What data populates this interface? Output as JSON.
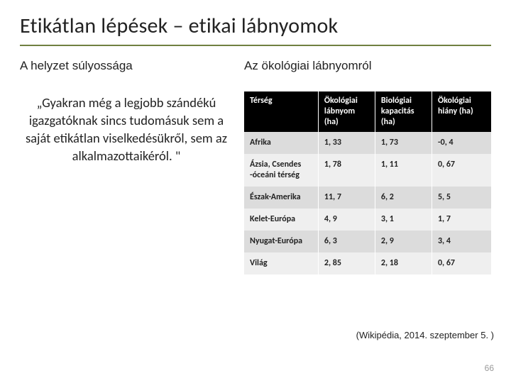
{
  "title": "Etikátlan lépések – etikai lábnyomok",
  "left": {
    "heading": "A helyzet súlyossága",
    "quote": "„Gyakran még a legjobb szándékú igazgatóknak sincs tudomásuk sem a saját etikátlan viselkedésükről, sem az alkalmazottaikéról. \""
  },
  "right": {
    "heading": "Az ökológiai lábnyomról",
    "table": {
      "columns": [
        "Térség",
        "Ökológiai lábnyom (ha)",
        "Biológiai kapacitás (ha)",
        "Ökológiai hiány (ha)"
      ],
      "rows": [
        [
          "Afrika",
          "1, 33",
          "1, 73",
          "-0, 4"
        ],
        [
          "Ázsia, Csendes -óceáni térség",
          "1, 78",
          "1, 11",
          "0, 67"
        ],
        [
          "Észak-Amerika",
          "11, 7",
          "6, 2",
          "5, 5"
        ],
        [
          "Kelet-Európa",
          "4, 9",
          "3, 1",
          "1, 7"
        ],
        [
          "Nyugat-Európa",
          "6, 3",
          "2, 9",
          "3, 4"
        ],
        [
          "Világ",
          "2, 85",
          "2, 18",
          "0, 67"
        ]
      ]
    }
  },
  "citation": "(Wikipédia, 2014. szeptember 5. )",
  "pagenum": "66"
}
